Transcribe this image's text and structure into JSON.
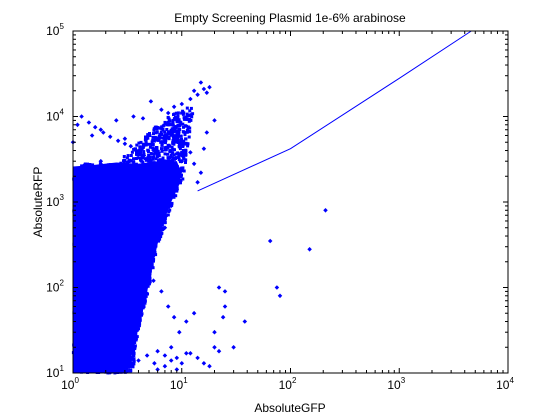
{
  "chart_data": {
    "type": "scatter",
    "title": "Empty Screening Plasmid 1e-6% arabinose",
    "xlabel": "AbsoluteGFP",
    "ylabel": "AbsoluteRFP",
    "xscale": "log",
    "yscale": "log",
    "xlim": [
      1,
      10000
    ],
    "ylim": [
      10,
      100000
    ],
    "grid": false,
    "legend": "none",
    "x_ticks": [
      {
        "base": "10",
        "exp": "0",
        "value": 1
      },
      {
        "base": "10",
        "exp": "1",
        "value": 10
      },
      {
        "base": "10",
        "exp": "2",
        "value": 100
      },
      {
        "base": "10",
        "exp": "3",
        "value": 1000
      },
      {
        "base": "10",
        "exp": "4",
        "value": 10000
      }
    ],
    "y_ticks": [
      {
        "base": "10",
        "exp": "1",
        "value": 10
      },
      {
        "base": "10",
        "exp": "2",
        "value": 100
      },
      {
        "base": "10",
        "exp": "3",
        "value": 1000
      },
      {
        "base": "10",
        "exp": "4",
        "value": 10000
      },
      {
        "base": "10",
        "exp": "5",
        "value": 100000
      }
    ],
    "series": [
      {
        "style": "points",
        "color": "#0000ff",
        "x": [
          1.0,
          1.1,
          1.2,
          1.3,
          1.5,
          1.6,
          1.8,
          2.0,
          2.2,
          2.5,
          2.8,
          3.0,
          3.3,
          3.6,
          4.0,
          4.4,
          4.8,
          5.2,
          5.6,
          6.0,
          6.5,
          7.0,
          7.5,
          8.0,
          8.5,
          9.0,
          10.0,
          11.0,
          12.0,
          13.0,
          14.0,
          15.0,
          16.0,
          17.0,
          18.0,
          20.0,
          1.1,
          1.3,
          1.5,
          1.8,
          2.1,
          2.4,
          2.7,
          3.1,
          3.5,
          4.0,
          4.5,
          5.0,
          5.5,
          6.0,
          7.0,
          8.0,
          9.0,
          10.0,
          12.0,
          13.0,
          14.0,
          15.0,
          16.0,
          17.0,
          2.5,
          3.5,
          4.5,
          5.5,
          6.5,
          7.5,
          8.5,
          9.5,
          11.0,
          13.0,
          20.0,
          22.0,
          25.0,
          25.0,
          24.0,
          30.0,
          38.0,
          65.0,
          75.0,
          80.0,
          150.0,
          210.0,
          12.0,
          14.0,
          16.0,
          18.0,
          20.0,
          22.0,
          6.0,
          7.0,
          8.0,
          9.0,
          10.0,
          1.2,
          1.4,
          1.6,
          1.9,
          2.2,
          2.6,
          3.0,
          3.4
        ],
        "y": [
          5000,
          8000,
          15,
          12,
          6000,
          20,
          7000,
          11,
          14,
          9000,
          13,
          5500,
          12,
          10000,
          14,
          9500,
          16,
          15000,
          13,
          18,
          12000,
          16,
          11000,
          20,
          13000,
          15,
          14000,
          17,
          16000,
          20000,
          18000,
          25000,
          21000,
          19000,
          22000,
          9000,
          1500,
          900,
          2500,
          3000,
          600,
          400,
          1200,
          800,
          2000,
          1800,
          3500,
          1000,
          4000,
          2500,
          500,
          900,
          1400,
          3000,
          3800,
          2800,
          1700,
          2200,
          4200,
          6500,
          300,
          200,
          150,
          120,
          90,
          60,
          45,
          30,
          40,
          50,
          30,
          100,
          90,
          60,
          45,
          20,
          40,
          350,
          100,
          80,
          280,
          800,
          17,
          15,
          13,
          12,
          20,
          18,
          11,
          12,
          14,
          11,
          13,
          10000,
          8500,
          7500,
          6500,
          5800,
          5200,
          4800,
          4500
        ]
      },
      {
        "style": "line",
        "color": "#0000ff",
        "x": [
          14,
          100,
          1000,
          4600
        ],
        "y": [
          1350,
          4200,
          28000,
          100000
        ]
      }
    ]
  }
}
